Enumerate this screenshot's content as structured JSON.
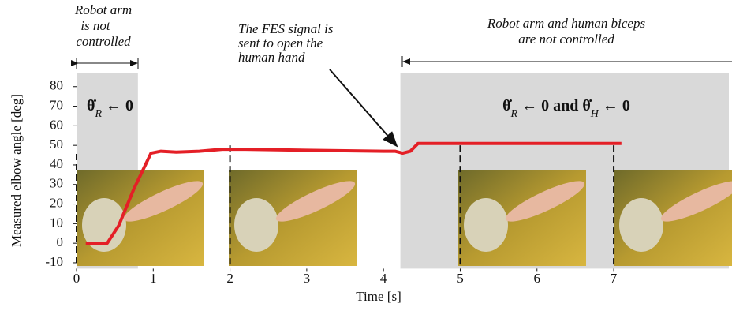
{
  "chart_data": {
    "type": "line",
    "x_label": "Time [s]",
    "y_label": "Measured elbow angle [deg]",
    "xlim": [
      0,
      8.5
    ],
    "ylim": [
      -13,
      87
    ],
    "xticks": [
      0,
      1,
      2,
      3,
      4,
      5,
      6,
      7
    ],
    "yticks": [
      -10,
      0,
      10,
      20,
      30,
      40,
      50,
      60,
      70,
      80
    ],
    "series": [
      {
        "color": "#e41f26",
        "x": [
          0.12,
          0.4,
          0.55,
          0.75,
          0.97,
          1.1,
          1.3,
          1.6,
          1.9,
          2.2,
          3.0,
          4.0,
          4.15,
          4.25,
          4.35,
          4.45,
          5.0,
          6.0,
          7.1
        ],
        "values": [
          0,
          0,
          9,
          28,
          46,
          47,
          46.5,
          47,
          48,
          48,
          47.5,
          47,
          47,
          46,
          47,
          51,
          51,
          51,
          51
        ]
      }
    ],
    "shaded_regions": [
      [
        0,
        0.8
      ],
      [
        4.22,
        8.5
      ]
    ],
    "event_times": [
      0,
      2,
      5,
      7
    ],
    "annotations": [
      {
        "lines": [
          "Robot arm",
          "is not",
          "controlled"
        ]
      },
      {
        "lines": [
          "The FES signal is",
          "sent to open the",
          "human hand"
        ]
      },
      {
        "lines": [
          "Robot arm and human biceps",
          "are not controlled"
        ]
      }
    ],
    "math_labels": [
      [
        {
          "text": "θ̇"
        },
        {
          "text": "R",
          "sub": true
        },
        {
          "text": " ← 0"
        }
      ],
      [
        {
          "text": "θ̇"
        },
        {
          "text": "R",
          "sub": true
        },
        {
          "text": " ← 0 and "
        },
        {
          "text": "θ̇"
        },
        {
          "text": "H",
          "sub": true
        },
        {
          "text": " ← 0"
        }
      ]
    ]
  }
}
